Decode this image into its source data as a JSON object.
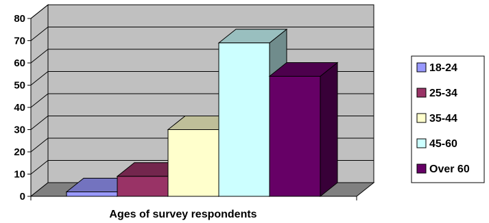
{
  "chart_data": {
    "type": "bar",
    "subtype": "3d-column",
    "categories": [
      "18-24",
      "25-34",
      "35-44",
      "45-60",
      "Over 60"
    ],
    "values": [
      2,
      9,
      30,
      69,
      54
    ],
    "xlabel": "Ages of survey respondents",
    "ylabel": "",
    "ylim": [
      0,
      80
    ],
    "yticks": [
      "0",
      "10",
      "20",
      "30",
      "40",
      "50",
      "60",
      "70",
      "80"
    ],
    "grid": true,
    "legend_position": "right",
    "colors": [
      "#9999ff",
      "#993366",
      "#ffffcc",
      "#ccffff",
      "#660066"
    ],
    "wall_color": "#c0c0c0",
    "floor_color": "#808080"
  }
}
